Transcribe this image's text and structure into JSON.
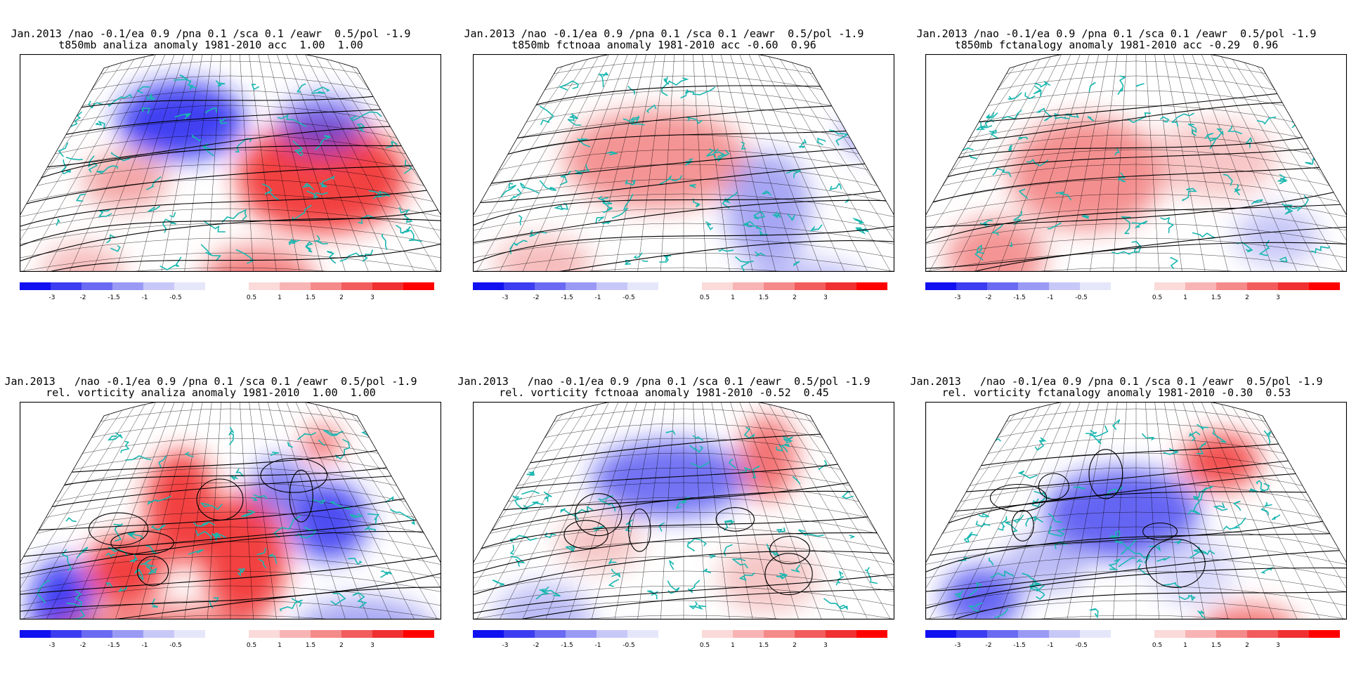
{
  "panels": [
    {
      "line1": "Jan.2013 /nao -0.1/ea 0.9 /pna 0.1 /sca 0.1 /eawr  0.5/pol -1.9",
      "line2": "t850mb analiza anomaly 1981-2010 acc  1.00  1.00",
      "field": "t850",
      "variant": 0
    },
    {
      "line1": "Jan.2013 /nao -0.1/ea 0.9 /pna 0.1 /sca 0.1 /eawr  0.5/pol -1.9",
      "line2": "t850mb fctnoaa anomaly 1981-2010 acc -0.60  0.96",
      "field": "t850",
      "variant": 1
    },
    {
      "line1": "Jan.2013 /nao -0.1/ea 0.9 /pna 0.1 /sca 0.1 /eawr  0.5/pol -1.9",
      "line2": "t850mb fctanalogy anomaly 1981-2010 acc -0.29  0.96",
      "field": "t850",
      "variant": 2
    },
    {
      "line1": "Jan.2013   /nao -0.1/ea 0.9 /pna 0.1 /sca 0.1 /eawr  0.5/pol -1.9",
      "line2": "rel. vorticity analiza anomaly 1981-2010  1.00  1.00",
      "field": "vort",
      "variant": 0
    },
    {
      "line1": "Jan.2013   /nao -0.1/ea 0.9 /pna 0.1 /sca 0.1 /eawr  0.5/pol -1.9",
      "line2": "rel. vorticity fctnoaa anomaly 1981-2010 -0.52  0.45",
      "field": "vort",
      "variant": 1
    },
    {
      "line1": "Jan.2013   /nao -0.1/ea 0.9 /pna 0.1 /sca 0.1 /eawr  0.5/pol -1.9",
      "line2": "rel. vorticity fctanalogy anomaly 1981-2010 -0.30  0.53",
      "field": "vort",
      "variant": 2
    }
  ],
  "legend": {
    "negative_labels": [
      "-3",
      "-2",
      "-1.5",
      "-1",
      "-0.5"
    ],
    "positive_labels": [
      "0.5",
      "1",
      "1.5",
      "2",
      "3"
    ],
    "negative_colors": [
      "#1010f0",
      "#3c3cf0",
      "#6a6af2",
      "#9a9af5",
      "#c8c8f8",
      "#e6e6fb"
    ],
    "positive_colors": [
      "#fbdada",
      "#f8b4b4",
      "#f58a8a",
      "#f25c5c",
      "#f03030",
      "#ff0000"
    ]
  },
  "colors": {
    "coastline": "#19b7b0",
    "contour": "#000000",
    "frame": "#000000"
  }
}
